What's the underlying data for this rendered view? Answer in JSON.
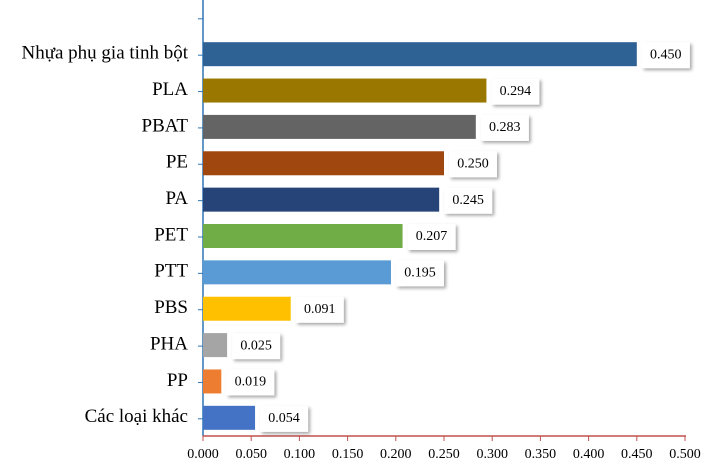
{
  "chart_data": {
    "type": "bar",
    "orientation": "horizontal",
    "categories": [
      "Nhựa phụ gia tinh bột",
      "PLA",
      "PBAT",
      "PE",
      "PA",
      "PET",
      "PTT",
      "PBS",
      "PHA",
      "PP",
      "Các loại khác"
    ],
    "values": [
      0.45,
      0.294,
      0.283,
      0.25,
      0.245,
      0.207,
      0.195,
      0.091,
      0.025,
      0.019,
      0.054
    ],
    "value_labels": [
      "0.450",
      "0.294",
      "0.283",
      "0.250",
      "0.245",
      "0.207",
      "0.195",
      "0.091",
      "0.025",
      "0.019",
      "0.054"
    ],
    "colors": [
      "#2e6194",
      "#9a7800",
      "#646464",
      "#a0460f",
      "#264478",
      "#70ad47",
      "#5b9bd5",
      "#ffc000",
      "#a5a5a5",
      "#ed7d31",
      "#4472c4"
    ],
    "xlim": [
      0,
      0.5
    ],
    "xticks": [
      {
        "value": 0,
        "label": "0.000"
      },
      {
        "value": 0.05,
        "label": "0.050"
      },
      {
        "value": 0.1,
        "label": "0.100"
      },
      {
        "value": 0.15,
        "label": "0.150"
      },
      {
        "value": 0.2,
        "label": "0.200"
      },
      {
        "value": 0.25,
        "label": "0.250"
      },
      {
        "value": 0.3,
        "label": "0.300"
      },
      {
        "value": 0.35,
        "label": "0.350"
      },
      {
        "value": 0.4,
        "label": "0.400"
      },
      {
        "value": 0.45,
        "label": "0.450"
      },
      {
        "value": 0.5,
        "label": "0.500"
      }
    ]
  }
}
